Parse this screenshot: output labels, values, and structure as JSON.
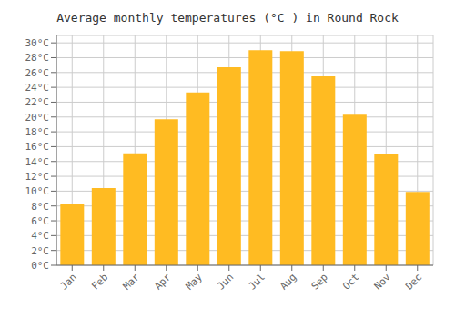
{
  "chart_data": {
    "type": "bar",
    "title": "Average monthly temperatures (°C ) in Round Rock",
    "categories": [
      "Jan",
      "Feb",
      "Mar",
      "Apr",
      "May",
      "Jun",
      "Jul",
      "Aug",
      "Sep",
      "Oct",
      "Nov",
      "Dec"
    ],
    "values": [
      8.2,
      10.4,
      15.1,
      19.7,
      23.3,
      26.7,
      29.0,
      28.9,
      25.5,
      20.3,
      15.0,
      9.9
    ],
    "color": "#FFBB22",
    "ylim": [
      0,
      31
    ],
    "yticks": [
      {
        "value": 0,
        "label": "0°C"
      },
      {
        "value": 2,
        "label": "2°C"
      },
      {
        "value": 4,
        "label": "4°C"
      },
      {
        "value": 6,
        "label": "6°C"
      },
      {
        "value": 8,
        "label": "8°C"
      },
      {
        "value": 10,
        "label": "10°C"
      },
      {
        "value": 12,
        "label": "12°C"
      },
      {
        "value": 14,
        "label": "14°C"
      },
      {
        "value": 16,
        "label": "16°C"
      },
      {
        "value": 18,
        "label": "18°C"
      },
      {
        "value": 20,
        "label": "20°C"
      },
      {
        "value": 22,
        "label": "22°C"
      },
      {
        "value": 24,
        "label": "24°C"
      },
      {
        "value": 26,
        "label": "26°C"
      },
      {
        "value": 28,
        "label": "28°C"
      },
      {
        "value": 30,
        "label": "30°C"
      }
    ],
    "grid": true
  }
}
